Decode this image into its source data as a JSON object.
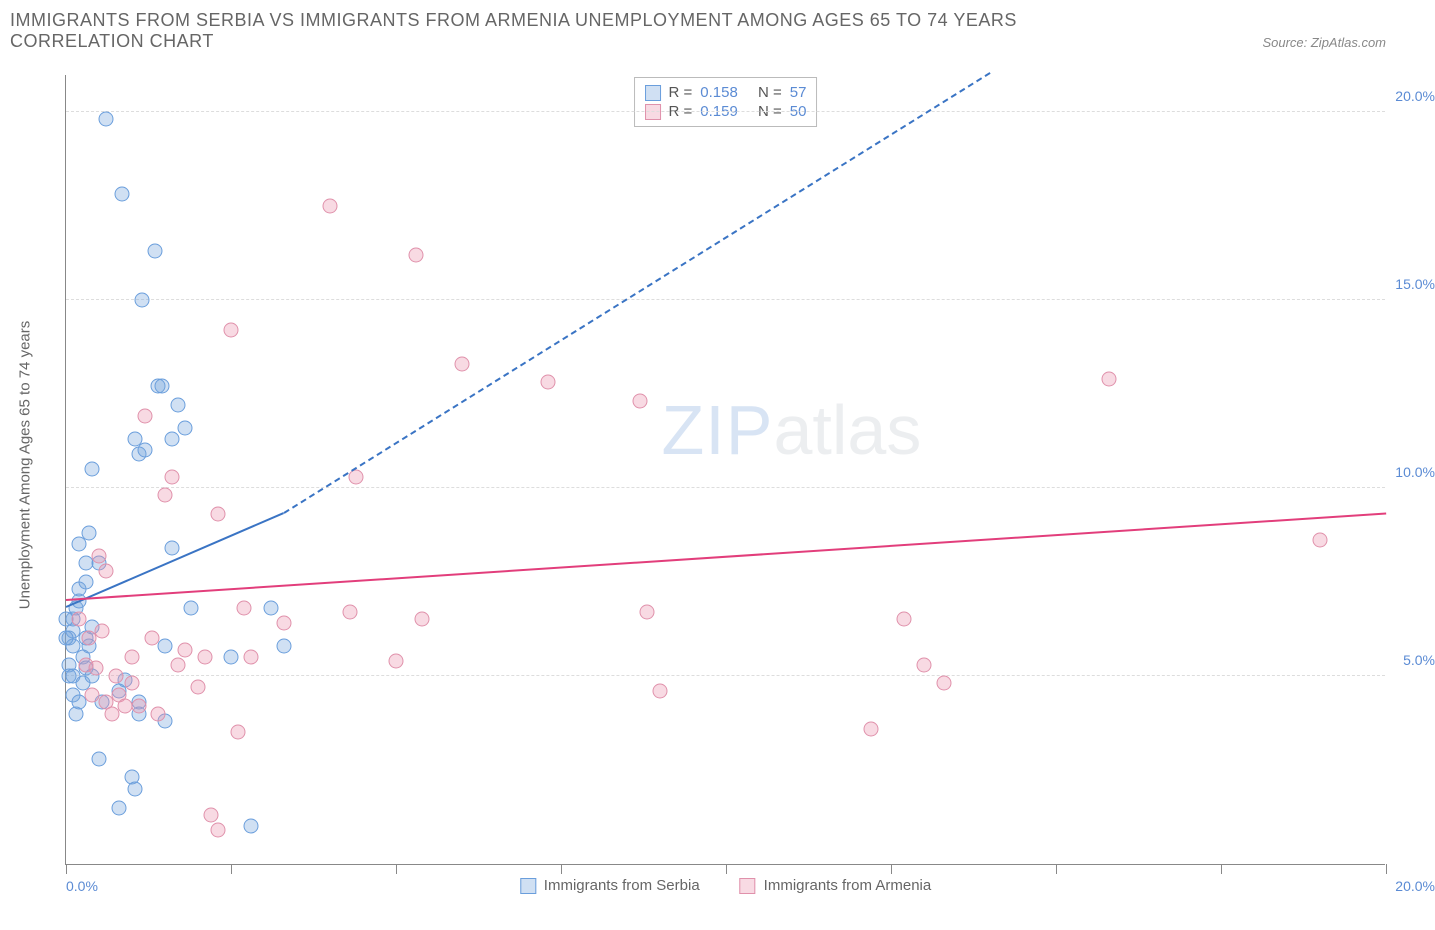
{
  "title": "IMMIGRANTS FROM SERBIA VS IMMIGRANTS FROM ARMENIA UNEMPLOYMENT AMONG AGES 65 TO 74 YEARS CORRELATION CHART",
  "source_label": "Source: ZipAtlas.com",
  "ylabel": "Unemployment Among Ages 65 to 74 years",
  "watermark_a": "ZIP",
  "watermark_b": "atlas",
  "chart": {
    "type": "scatter",
    "xlim": [
      0,
      20
    ],
    "ylim": [
      0,
      21
    ],
    "x_min_label": "0.0%",
    "x_max_label": "20.0%",
    "y_ticks": [
      5,
      10,
      15,
      20
    ],
    "y_tick_labels": [
      "5.0%",
      "10.0%",
      "15.0%",
      "20.0%"
    ],
    "x_tick_positions": [
      0,
      2.5,
      5,
      7.5,
      10,
      12.5,
      15,
      17.5,
      20
    ],
    "background": "#ffffff",
    "grid_color": "#dddddd",
    "axis_color": "#888888",
    "tick_label_color": "#5b8bd4"
  },
  "series": [
    {
      "name": "Immigrants from Serbia",
      "color_fill": "rgba(120,165,220,0.35)",
      "color_stroke": "#6a9edc",
      "R": "0.158",
      "N": "57",
      "trend": {
        "x0": 0,
        "y0": 6.8,
        "x1_solid": 3.3,
        "y1_solid": 9.3,
        "x1_dash": 14,
        "y1_dash": 21,
        "color": "#3a74c4"
      },
      "points": [
        [
          0.05,
          6.0
        ],
        [
          0.1,
          6.2
        ],
        [
          0.1,
          6.5
        ],
        [
          0.15,
          6.8
        ],
        [
          0.1,
          5.8
        ],
        [
          0.2,
          7.0
        ],
        [
          0.2,
          7.3
        ],
        [
          0.2,
          8.5
        ],
        [
          0.25,
          5.5
        ],
        [
          0.3,
          6.0
        ],
        [
          0.3,
          7.5
        ],
        [
          0.3,
          8.0
        ],
        [
          0.35,
          8.8
        ],
        [
          0.4,
          10.5
        ],
        [
          0.4,
          6.3
        ],
        [
          0.6,
          19.8
        ],
        [
          0.8,
          4.6
        ],
        [
          0.8,
          1.5
        ],
        [
          0.85,
          17.8
        ],
        [
          0.9,
          4.9
        ],
        [
          1.0,
          2.3
        ],
        [
          1.05,
          2.0
        ],
        [
          1.05,
          11.3
        ],
        [
          1.1,
          10.9
        ],
        [
          1.1,
          4.3
        ],
        [
          1.1,
          4.0
        ],
        [
          1.15,
          15.0
        ],
        [
          1.2,
          11.0
        ],
        [
          1.35,
          16.3
        ],
        [
          1.4,
          12.7
        ],
        [
          1.45,
          12.7
        ],
        [
          1.5,
          5.8
        ],
        [
          1.5,
          3.8
        ],
        [
          1.6,
          11.3
        ],
        [
          1.6,
          8.4
        ],
        [
          1.7,
          12.2
        ],
        [
          1.8,
          11.6
        ],
        [
          1.9,
          6.8
        ],
        [
          2.5,
          5.5
        ],
        [
          2.8,
          1.0
        ],
        [
          3.1,
          6.8
        ],
        [
          3.3,
          5.8
        ],
        [
          0.0,
          6.0
        ],
        [
          0.0,
          6.5
        ],
        [
          0.05,
          5.3
        ],
        [
          0.05,
          5.0
        ],
        [
          0.1,
          5.0
        ],
        [
          0.1,
          4.5
        ],
        [
          0.15,
          4.0
        ],
        [
          0.2,
          4.3
        ],
        [
          0.25,
          4.8
        ],
        [
          0.3,
          5.2
        ],
        [
          0.35,
          5.8
        ],
        [
          0.4,
          5.0
        ],
        [
          0.5,
          8.0
        ],
        [
          0.5,
          2.8
        ],
        [
          0.55,
          4.3
        ]
      ]
    },
    {
      "name": "Immigrants from Armenia",
      "color_fill": "rgba(235,150,175,0.35)",
      "color_stroke": "#e091ab",
      "R": "0.159",
      "N": "50",
      "trend": {
        "x0": 0,
        "y0": 7.0,
        "x1_solid": 20,
        "y1_solid": 9.3,
        "color": "#e23e7b"
      },
      "points": [
        [
          0.3,
          5.3
        ],
        [
          0.4,
          4.5
        ],
        [
          0.5,
          8.2
        ],
        [
          0.6,
          4.3
        ],
        [
          0.6,
          7.8
        ],
        [
          0.7,
          4.0
        ],
        [
          0.8,
          4.5
        ],
        [
          0.9,
          4.2
        ],
        [
          1.0,
          4.8
        ],
        [
          1.0,
          5.5
        ],
        [
          1.2,
          11.9
        ],
        [
          1.4,
          4.0
        ],
        [
          1.5,
          9.8
        ],
        [
          1.6,
          10.3
        ],
        [
          1.7,
          5.3
        ],
        [
          1.8,
          5.7
        ],
        [
          2.0,
          4.7
        ],
        [
          2.1,
          5.5
        ],
        [
          2.2,
          1.3
        ],
        [
          2.3,
          9.3
        ],
        [
          2.3,
          0.9
        ],
        [
          2.5,
          14.2
        ],
        [
          2.6,
          3.5
        ],
        [
          2.7,
          6.8
        ],
        [
          2.8,
          5.5
        ],
        [
          3.3,
          6.4
        ],
        [
          4.0,
          17.5
        ],
        [
          4.3,
          6.7
        ],
        [
          4.4,
          10.3
        ],
        [
          5.0,
          5.4
        ],
        [
          5.3,
          16.2
        ],
        [
          5.4,
          6.5
        ],
        [
          6.0,
          13.3
        ],
        [
          7.3,
          12.8
        ],
        [
          8.7,
          12.3
        ],
        [
          8.8,
          6.7
        ],
        [
          9.0,
          4.6
        ],
        [
          12.2,
          3.6
        ],
        [
          12.7,
          6.5
        ],
        [
          13.0,
          5.3
        ],
        [
          13.3,
          4.8
        ],
        [
          15.8,
          12.9
        ],
        [
          19.0,
          8.6
        ],
        [
          0.2,
          6.5
        ],
        [
          0.35,
          6.0
        ],
        [
          0.45,
          5.2
        ],
        [
          0.55,
          6.2
        ],
        [
          0.75,
          5.0
        ],
        [
          1.1,
          4.2
        ],
        [
          1.3,
          6.0
        ]
      ]
    }
  ],
  "legend_labels": {
    "R": "R =",
    "N": "N ="
  }
}
